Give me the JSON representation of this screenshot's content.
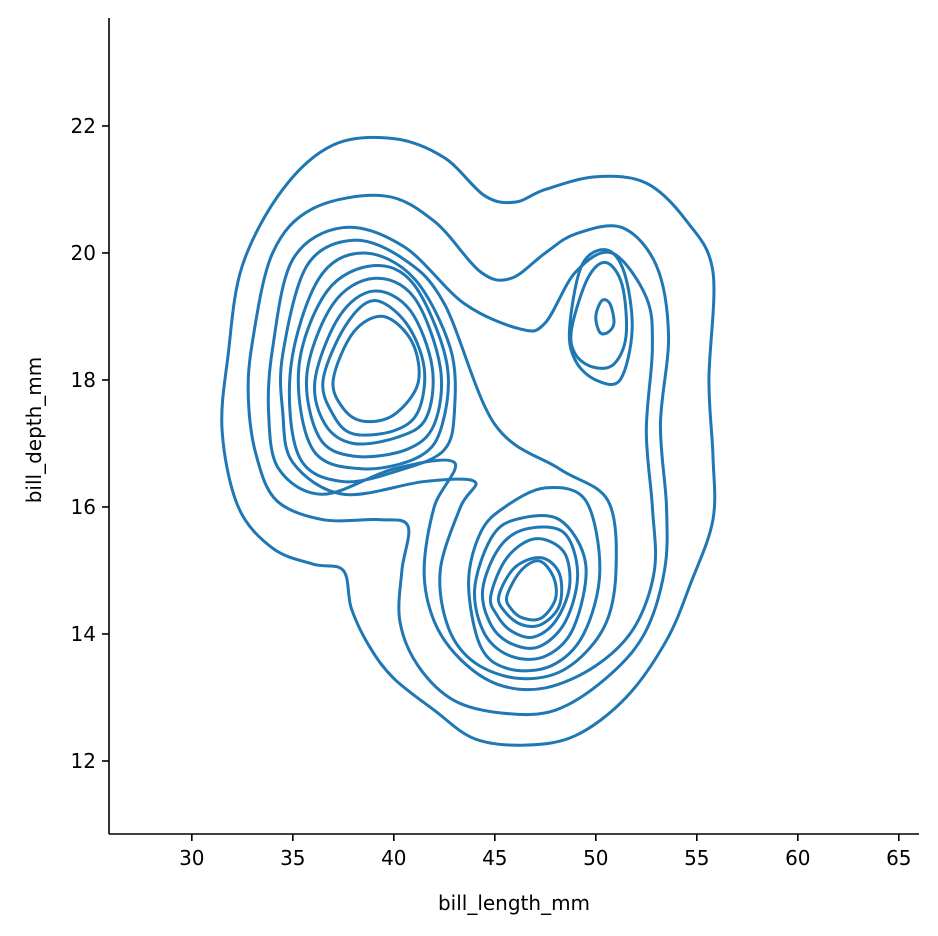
{
  "chart_data": {
    "type": "kde-contour",
    "xlabel": "bill_length_mm",
    "ylabel": "bill_depth_mm",
    "xlim": [
      25.9,
      66.0
    ],
    "ylim": [
      10.85,
      23.7
    ],
    "x_ticks": [
      30,
      35,
      40,
      45,
      50,
      55,
      60,
      65
    ],
    "y_ticks": [
      12,
      14,
      16,
      18,
      20,
      22
    ],
    "x_tick_labels": [
      "30",
      "35",
      "40",
      "45",
      "50",
      "55",
      "60",
      "65"
    ],
    "y_tick_labels": [
      "12",
      "14",
      "16",
      "18",
      "20",
      "22"
    ],
    "grid": false,
    "line_color": "#1f77b4",
    "contours": [
      {
        "level": 1,
        "points": [
          [
            31.8,
            18.4
          ],
          [
            32.5,
            19.8
          ],
          [
            34.5,
            21.0
          ],
          [
            37.0,
            21.7
          ],
          [
            40.0,
            21.8
          ],
          [
            42.5,
            21.5
          ],
          [
            44.5,
            20.9
          ],
          [
            46.0,
            20.8
          ],
          [
            47.5,
            21.0
          ],
          [
            50.0,
            21.2
          ],
          [
            52.5,
            21.1
          ],
          [
            54.5,
            20.5
          ],
          [
            55.8,
            19.7
          ],
          [
            55.6,
            18.0
          ],
          [
            55.8,
            16.8
          ],
          [
            55.8,
            15.8
          ],
          [
            54.7,
            14.8
          ],
          [
            53.5,
            13.9
          ],
          [
            51.5,
            13.0
          ],
          [
            49.0,
            12.4
          ],
          [
            46.5,
            12.25
          ],
          [
            44.0,
            12.35
          ],
          [
            42.0,
            12.8
          ],
          [
            40.0,
            13.3
          ],
          [
            38.8,
            13.8
          ],
          [
            37.9,
            14.4
          ],
          [
            37.5,
            15.0
          ],
          [
            36.0,
            15.1
          ],
          [
            34.0,
            15.35
          ],
          [
            32.3,
            16.0
          ],
          [
            31.5,
            17.2
          ],
          [
            31.8,
            18.4
          ]
        ]
      },
      {
        "level": 2,
        "points": [
          [
            33.0,
            18.6
          ],
          [
            34.0,
            20.0
          ],
          [
            36.0,
            20.7
          ],
          [
            39.5,
            20.9
          ],
          [
            42.0,
            20.5
          ],
          [
            44.3,
            19.7
          ],
          [
            45.8,
            19.6
          ],
          [
            47.5,
            20.0
          ],
          [
            49.0,
            20.3
          ],
          [
            51.3,
            20.4
          ],
          [
            53.0,
            19.8
          ],
          [
            53.6,
            18.7
          ],
          [
            53.2,
            17.3
          ],
          [
            53.5,
            16.0
          ],
          [
            53.4,
            15.0
          ],
          [
            52.4,
            14.0
          ],
          [
            50.5,
            13.3
          ],
          [
            48.0,
            12.8
          ],
          [
            45.5,
            12.75
          ],
          [
            43.0,
            12.95
          ],
          [
            41.2,
            13.5
          ],
          [
            40.3,
            14.2
          ],
          [
            40.4,
            15.0
          ],
          [
            40.7,
            15.7
          ],
          [
            39.3,
            15.8
          ],
          [
            36.5,
            15.8
          ],
          [
            34.2,
            16.1
          ],
          [
            33.2,
            16.8
          ],
          [
            32.8,
            17.7
          ],
          [
            33.0,
            18.6
          ]
        ]
      },
      {
        "level": 3,
        "points": [
          [
            34.0,
            18.5
          ],
          [
            35.0,
            19.9
          ],
          [
            37.5,
            20.4
          ],
          [
            40.5,
            20.1
          ],
          [
            43.5,
            19.2
          ],
          [
            46.3,
            18.8
          ],
          [
            47.5,
            18.9
          ],
          [
            49.0,
            19.7
          ],
          [
            50.8,
            20.0
          ],
          [
            52.5,
            19.3
          ],
          [
            52.8,
            18.5
          ],
          [
            52.5,
            17.2
          ],
          [
            52.8,
            16.0
          ],
          [
            52.9,
            15.0
          ],
          [
            51.9,
            14.1
          ],
          [
            50.0,
            13.5
          ],
          [
            47.5,
            13.15
          ],
          [
            45.2,
            13.2
          ],
          [
            43.3,
            13.6
          ],
          [
            42.0,
            14.2
          ],
          [
            41.5,
            15.0
          ],
          [
            42.0,
            16.0
          ],
          [
            43.0,
            16.7
          ],
          [
            40.0,
            16.6
          ],
          [
            36.5,
            16.2
          ],
          [
            34.3,
            16.6
          ],
          [
            33.8,
            17.5
          ],
          [
            34.0,
            18.5
          ]
        ]
      },
      {
        "level": 4,
        "points": [
          [
            34.5,
            18.4
          ],
          [
            35.7,
            19.8
          ],
          [
            38.0,
            20.2
          ],
          [
            40.5,
            19.9
          ],
          [
            42.5,
            19.2
          ],
          [
            45.0,
            17.3
          ],
          [
            48.2,
            16.6
          ],
          [
            50.6,
            16.1
          ],
          [
            51.0,
            15.0
          ],
          [
            50.4,
            14.1
          ],
          [
            48.5,
            13.45
          ],
          [
            46.2,
            13.3
          ],
          [
            44.0,
            13.55
          ],
          [
            42.7,
            14.1
          ],
          [
            42.3,
            15.0
          ],
          [
            43.3,
            16.0
          ],
          [
            44.0,
            16.4
          ],
          [
            41.5,
            16.4
          ],
          [
            37.5,
            16.2
          ],
          [
            35.0,
            16.7
          ],
          [
            34.5,
            17.5
          ],
          [
            34.5,
            18.4
          ]
        ]
      },
      {
        "level": 5,
        "points": [
          [
            34.9,
            18.2
          ],
          [
            36.3,
            19.6
          ],
          [
            38.5,
            20.0
          ],
          [
            41.0,
            19.6
          ],
          [
            42.8,
            18.5
          ],
          [
            43.0,
            17.5
          ],
          [
            42.5,
            16.9
          ],
          [
            40.5,
            16.6
          ],
          [
            37.5,
            16.4
          ],
          [
            35.3,
            16.8
          ],
          [
            34.9,
            18.2
          ]
        ]
      },
      {
        "level": 6,
        "points": [
          [
            35.3,
            18.2
          ],
          [
            36.7,
            19.4
          ],
          [
            39.0,
            19.8
          ],
          [
            41.0,
            19.5
          ],
          [
            42.6,
            18.3
          ],
          [
            42.4,
            17.3
          ],
          [
            41.3,
            16.8
          ],
          [
            38.5,
            16.6
          ],
          [
            36.0,
            16.9
          ],
          [
            35.3,
            18.2
          ]
        ]
      },
      {
        "level": 7,
        "points": [
          [
            35.7,
            18.1
          ],
          [
            37.0,
            19.2
          ],
          [
            39.0,
            19.6
          ],
          [
            41.0,
            19.3
          ],
          [
            42.3,
            18.2
          ],
          [
            42.0,
            17.3
          ],
          [
            40.6,
            16.9
          ],
          [
            38.0,
            16.8
          ],
          [
            36.3,
            17.1
          ],
          [
            35.7,
            18.1
          ]
        ]
      },
      {
        "level": 8,
        "points": [
          [
            36.1,
            18.0
          ],
          [
            37.3,
            19.0
          ],
          [
            39.0,
            19.4
          ],
          [
            40.8,
            19.1
          ],
          [
            41.9,
            18.2
          ],
          [
            41.6,
            17.4
          ],
          [
            40.2,
            17.1
          ],
          [
            38.0,
            17.0
          ],
          [
            36.6,
            17.3
          ],
          [
            36.1,
            18.0
          ]
        ]
      },
      {
        "level": 9,
        "points": [
          [
            36.5,
            18.0
          ],
          [
            37.6,
            18.85
          ],
          [
            39.0,
            19.25
          ],
          [
            40.6,
            18.9
          ],
          [
            41.5,
            18.2
          ],
          [
            41.2,
            17.5
          ],
          [
            40.0,
            17.2
          ],
          [
            38.0,
            17.15
          ],
          [
            37.0,
            17.45
          ],
          [
            36.5,
            18.0
          ]
        ]
      },
      {
        "level": 10,
        "points": [
          [
            37.0,
            18.0
          ],
          [
            38.0,
            18.75
          ],
          [
            39.5,
            19.0
          ],
          [
            40.9,
            18.6
          ],
          [
            41.2,
            17.95
          ],
          [
            40.0,
            17.45
          ],
          [
            38.5,
            17.35
          ],
          [
            37.5,
            17.55
          ],
          [
            37.0,
            18.0
          ]
        ]
      },
      {
        "level": 3.5,
        "points": [
          [
            48.7,
            18.8
          ],
          [
            49.3,
            19.8
          ],
          [
            50.5,
            20.05
          ],
          [
            51.4,
            19.7
          ],
          [
            51.8,
            18.8
          ],
          [
            51.2,
            18.0
          ],
          [
            50.0,
            18.0
          ],
          [
            49.0,
            18.3
          ],
          [
            48.7,
            18.8
          ]
        ]
      },
      {
        "level": 5.5,
        "points": [
          [
            48.8,
            18.8
          ],
          [
            49.6,
            19.6
          ],
          [
            50.5,
            19.85
          ],
          [
            51.3,
            19.5
          ],
          [
            51.5,
            18.7
          ],
          [
            50.9,
            18.25
          ],
          [
            49.9,
            18.2
          ],
          [
            49.0,
            18.4
          ],
          [
            48.8,
            18.8
          ]
        ]
      },
      {
        "level": 9.5,
        "points": [
          [
            50.0,
            19.0
          ],
          [
            50.3,
            19.25
          ],
          [
            50.7,
            19.2
          ],
          [
            50.9,
            18.9
          ],
          [
            50.6,
            18.75
          ],
          [
            50.2,
            18.75
          ],
          [
            50.0,
            19.0
          ]
        ]
      },
      {
        "level": 5.1,
        "points": [
          [
            43.7,
            14.8
          ],
          [
            44.3,
            15.6
          ],
          [
            45.5,
            16.0
          ],
          [
            47.5,
            16.3
          ],
          [
            49.5,
            16.1
          ],
          [
            50.2,
            15.0
          ],
          [
            49.4,
            14.0
          ],
          [
            47.8,
            13.5
          ],
          [
            45.7,
            13.45
          ],
          [
            44.3,
            13.8
          ],
          [
            43.7,
            14.8
          ]
        ]
      },
      {
        "level": 6.1,
        "points": [
          [
            44.0,
            14.7
          ],
          [
            44.8,
            15.5
          ],
          [
            46.0,
            15.8
          ],
          [
            48.2,
            15.8
          ],
          [
            49.5,
            15.1
          ],
          [
            48.9,
            14.1
          ],
          [
            47.5,
            13.65
          ],
          [
            45.8,
            13.65
          ],
          [
            44.5,
            14.0
          ],
          [
            44.0,
            14.7
          ]
        ]
      },
      {
        "level": 7.1,
        "points": [
          [
            44.4,
            14.7
          ],
          [
            45.2,
            15.35
          ],
          [
            46.5,
            15.65
          ],
          [
            48.4,
            15.6
          ],
          [
            49.1,
            14.95
          ],
          [
            48.5,
            14.2
          ],
          [
            47.2,
            13.8
          ],
          [
            45.8,
            13.85
          ],
          [
            44.8,
            14.15
          ],
          [
            44.4,
            14.7
          ]
        ]
      },
      {
        "level": 8.1,
        "points": [
          [
            44.8,
            14.6
          ],
          [
            45.6,
            15.2
          ],
          [
            47.0,
            15.5
          ],
          [
            48.4,
            15.3
          ],
          [
            48.7,
            14.75
          ],
          [
            48.0,
            14.2
          ],
          [
            46.9,
            13.95
          ],
          [
            45.8,
            14.05
          ],
          [
            45.1,
            14.3
          ],
          [
            44.8,
            14.6
          ]
        ]
      },
      {
        "level": 9.1,
        "points": [
          [
            45.2,
            14.6
          ],
          [
            46.0,
            15.05
          ],
          [
            47.3,
            15.2
          ],
          [
            48.2,
            14.95
          ],
          [
            48.2,
            14.45
          ],
          [
            47.3,
            14.15
          ],
          [
            46.3,
            14.15
          ],
          [
            45.5,
            14.35
          ],
          [
            45.2,
            14.6
          ]
        ]
      },
      {
        "level": 10.1,
        "points": [
          [
            45.6,
            14.6
          ],
          [
            46.3,
            15.0
          ],
          [
            47.2,
            15.15
          ],
          [
            47.9,
            14.9
          ],
          [
            48.0,
            14.55
          ],
          [
            47.3,
            14.25
          ],
          [
            46.4,
            14.25
          ],
          [
            45.8,
            14.4
          ],
          [
            45.6,
            14.6
          ]
        ]
      }
    ]
  }
}
